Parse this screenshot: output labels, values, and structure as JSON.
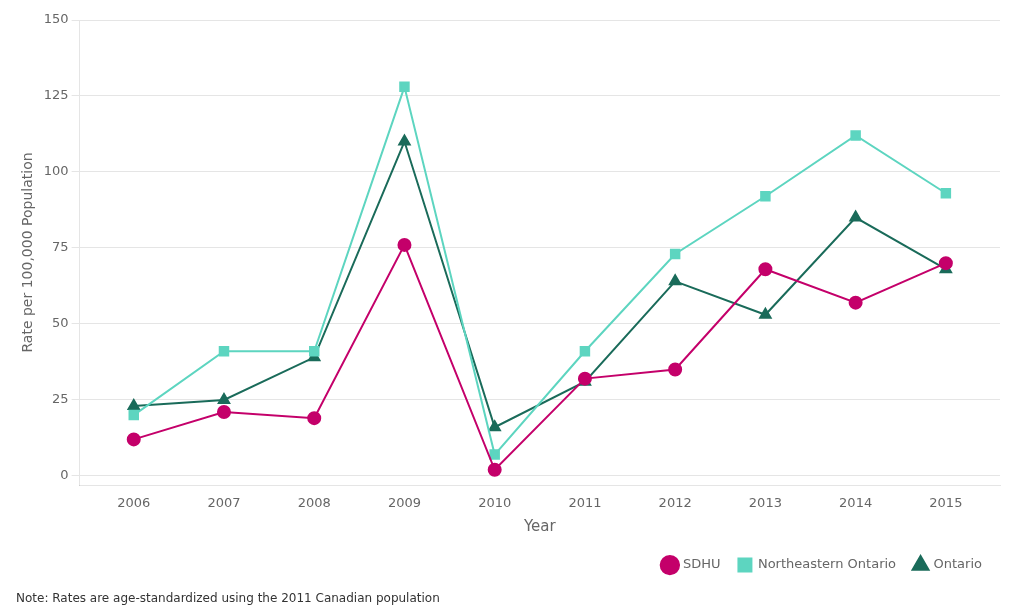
{
  "chart_data": {
    "type": "line",
    "x": [
      2006,
      2007,
      2008,
      2009,
      2010,
      2011,
      2012,
      2013,
      2014,
      2015
    ],
    "series": [
      {
        "name": "SDHU",
        "color": "#c4006a",
        "marker": "circle",
        "values": [
          12,
          21,
          19,
          76,
          2,
          32,
          35,
          68,
          57,
          70
        ]
      },
      {
        "name": "Northeastern Ontario",
        "color": "#5dd5c0",
        "marker": "square",
        "values": [
          20,
          41,
          41,
          128,
          7,
          41,
          73,
          92,
          112,
          93
        ]
      },
      {
        "name": "Ontario",
        "color": "#1a6b5a",
        "marker": "triangle",
        "values": [
          23,
          25,
          39,
          110,
          16,
          31,
          64,
          53,
          85,
          68
        ]
      }
    ],
    "xlabel": "Year",
    "ylabel": "Rate per 100,000 Population",
    "xlim": [
      2005.4,
      2015.6
    ],
    "xticks": [
      2006,
      2007,
      2008,
      2009,
      2010,
      2011,
      2012,
      2013,
      2014,
      2015
    ],
    "ylim": [
      -3,
      150
    ],
    "yticks": [
      0,
      25,
      50,
      75,
      100,
      125,
      150
    ],
    "grid": "y",
    "legend": "lower right",
    "note": "Note: Rates are age-standardized using the 2011 Canadian population"
  }
}
